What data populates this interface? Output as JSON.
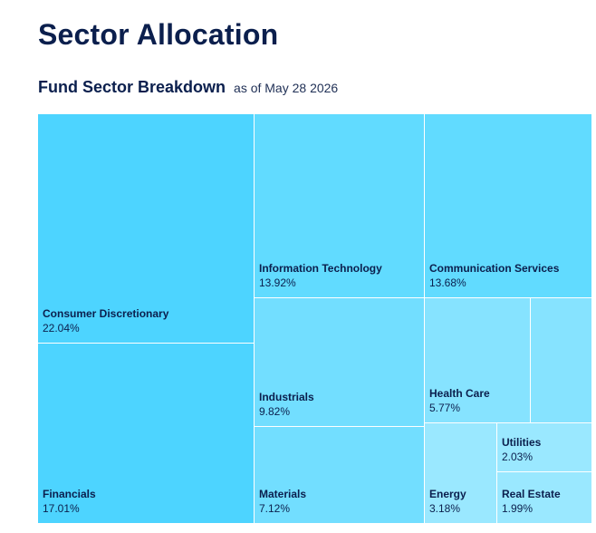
{
  "page": {
    "title": "Sector Allocation"
  },
  "chart_data": {
    "type": "treemap",
    "title": "Fund Sector Breakdown",
    "subtitle": "as of May 28 2026",
    "value_suffix": "%",
    "items": [
      {
        "name": "Consumer Discretionary",
        "value": 22.04,
        "label": "22.04%",
        "color": "#4dd4ff"
      },
      {
        "name": "Financials",
        "value": 17.01,
        "label": "17.01%",
        "color": "#4dd4ff"
      },
      {
        "name": "Information Technology",
        "value": 13.92,
        "label": "13.92%",
        "color": "#61dbff"
      },
      {
        "name": "Communication Services",
        "value": 13.68,
        "label": "13.68%",
        "color": "#61dbff"
      },
      {
        "name": "Industrials",
        "value": 9.82,
        "label": "9.82%",
        "color": "#72deff"
      },
      {
        "name": "Materials",
        "value": 7.12,
        "label": "7.12%",
        "color": "#72deff"
      },
      {
        "name": "Health Care",
        "value": 5.77,
        "label": "5.77%",
        "color": "#86e3ff"
      },
      {
        "name": "",
        "value": 3.0,
        "label": "",
        "color": "#86e3ff"
      },
      {
        "name": "Energy",
        "value": 3.18,
        "label": "3.18%",
        "color": "#9ae8ff"
      },
      {
        "name": "Utilities",
        "value": 2.03,
        "label": "2.03%",
        "color": "#9ae8ff"
      },
      {
        "name": "Real Estate",
        "value": 1.99,
        "label": "1.99%",
        "color": "#9ae8ff"
      }
    ]
  }
}
